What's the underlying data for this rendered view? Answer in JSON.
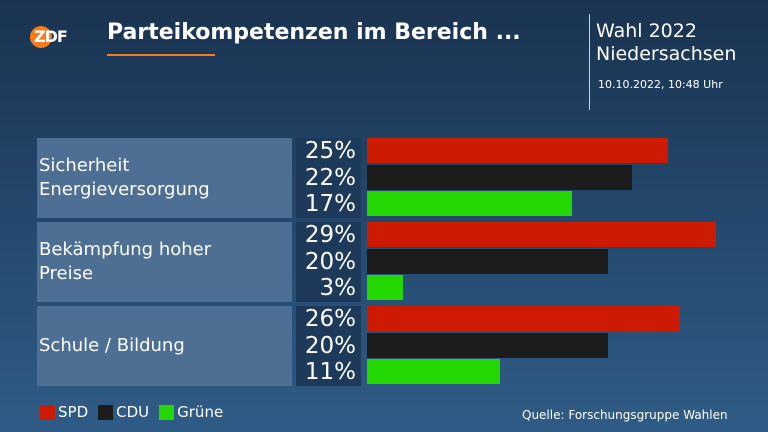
{
  "header": {
    "logo_text": "ZDF",
    "title": "Parteikompetenzen im Bereich ...",
    "election_line1": "Wahl 2022",
    "election_line2": "Niedersachsen",
    "timestamp": "10.10.2022, 10:48 Uhr"
  },
  "source": "Quelle: Forschungsgruppe Wahlen",
  "colors": {
    "SPD": "#cc1b00",
    "CDU": "#1c1c1c",
    "Grüne": "#22d800",
    "accent": "#f57d1c"
  },
  "chart_data": {
    "type": "bar",
    "orientation": "horizontal",
    "categories": [
      "Sicherheit\nEnergieversorgung",
      "Bekämpfung hoher\nPreise",
      "Schule / Bildung"
    ],
    "series": [
      {
        "name": "SPD",
        "values": [
          25,
          29,
          26
        ],
        "labels": [
          "25%",
          "29%",
          "26%"
        ]
      },
      {
        "name": "CDU",
        "values": [
          22,
          20,
          20
        ],
        "labels": [
          "22%",
          "20%",
          "20%"
        ]
      },
      {
        "name": "Grüne",
        "values": [
          17,
          3,
          11
        ],
        "labels": [
          "17%",
          "3%",
          "11%"
        ]
      }
    ],
    "unit": "%",
    "legend_position": "bottom-left"
  }
}
